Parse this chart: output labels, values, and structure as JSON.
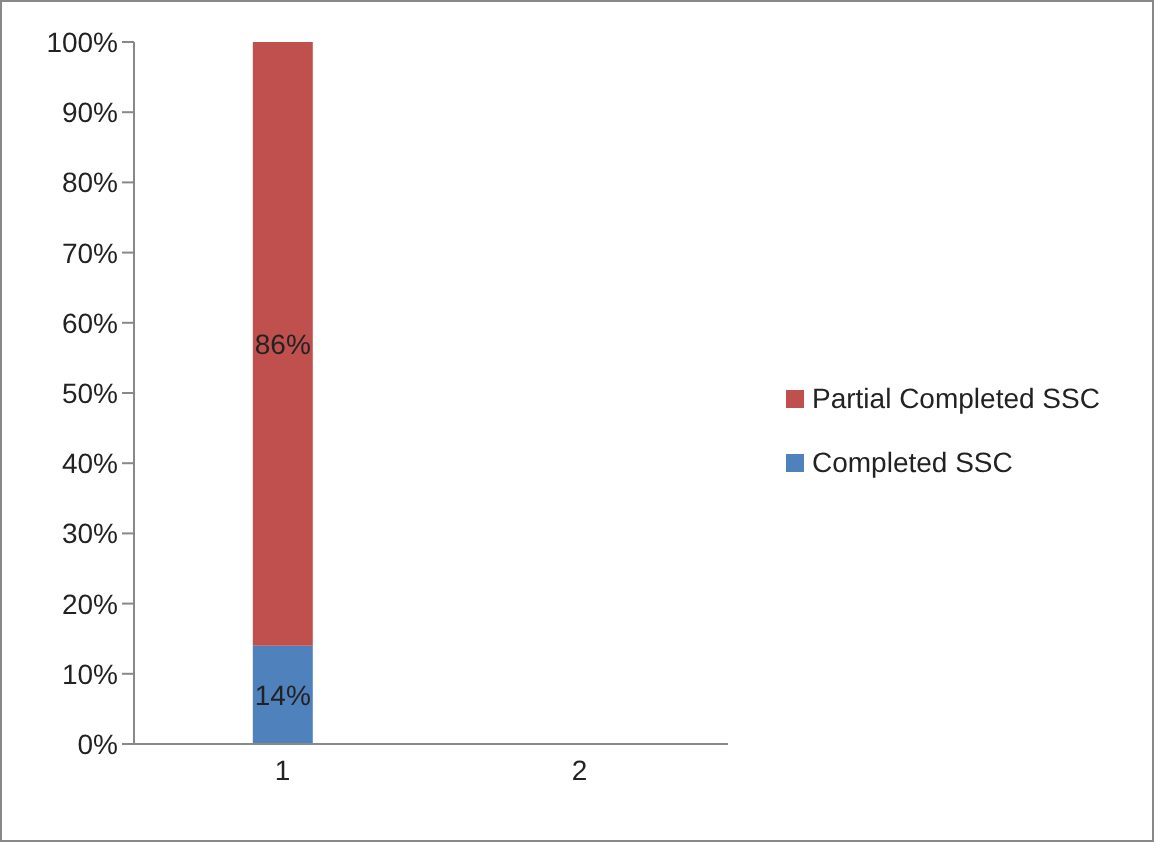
{
  "chart_data": {
    "type": "bar",
    "stacked": true,
    "categories": [
      "1",
      "2"
    ],
    "series": [
      {
        "name": "Completed SSC",
        "color": "#4f81bd",
        "values": [
          14,
          null
        ],
        "value_labels": [
          "14%",
          null
        ]
      },
      {
        "name": "Partial Completed SSC",
        "color": "#c0504d",
        "values": [
          86,
          null
        ],
        "value_labels": [
          "86%",
          null
        ]
      }
    ],
    "ylim": [
      0,
      100
    ],
    "yticks": [
      {
        "value": 0,
        "label": "0%"
      },
      {
        "value": 10,
        "label": "10%"
      },
      {
        "value": 20,
        "label": "20%"
      },
      {
        "value": 30,
        "label": "30%"
      },
      {
        "value": 40,
        "label": "40%"
      },
      {
        "value": 50,
        "label": "50%"
      },
      {
        "value": 60,
        "label": "60%"
      },
      {
        "value": 70,
        "label": "70%"
      },
      {
        "value": 80,
        "label": "80%"
      },
      {
        "value": 90,
        "label": "90%"
      },
      {
        "value": 100,
        "label": "100%"
      }
    ],
    "grid": false,
    "legend": "right"
  }
}
